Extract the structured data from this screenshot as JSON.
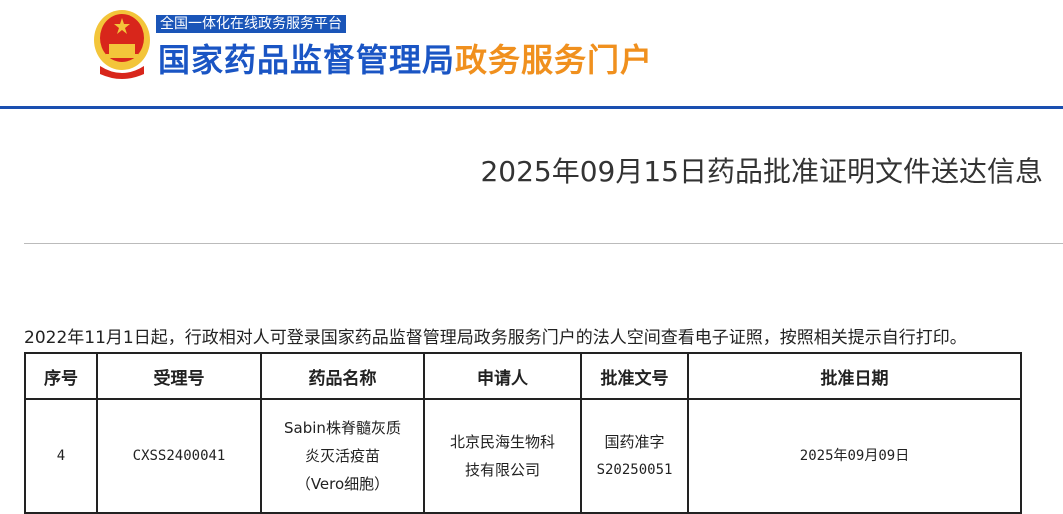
{
  "header": {
    "platform": "全国一体化在线政务服务平台",
    "brand_main": "国家药品监督管理局",
    "brand_sub": "政务服务门户",
    "colors": {
      "primary": "#1a55c4",
      "accent": "#f0901e",
      "emblem_red": "#d8261b",
      "emblem_gold": "#f3c53a"
    }
  },
  "page": {
    "title": "2025年09月15日药品批准证明文件送达信息",
    "notice": "2022年11月1日起，行政相对人可登录国家药品监督管理局政务服务门户的法人空间查看电子证照，按照相关提示自行打印。"
  },
  "table": {
    "headers": [
      "序号",
      "受理号",
      "药品名称",
      "申请人",
      "批准文号",
      "批准日期"
    ],
    "rows": [
      {
        "index": "4",
        "acceptance_no": "CXSS2400041",
        "drug_name": [
          "Sabin株脊髓灰质",
          "炎灭活疫苗",
          "（Vero细胞）"
        ],
        "applicant": [
          "北京民海生物科",
          "技有限公司"
        ],
        "approval_no": [
          "国药准字",
          "S20250051"
        ],
        "approval_date": "2025年09月09日"
      }
    ]
  }
}
